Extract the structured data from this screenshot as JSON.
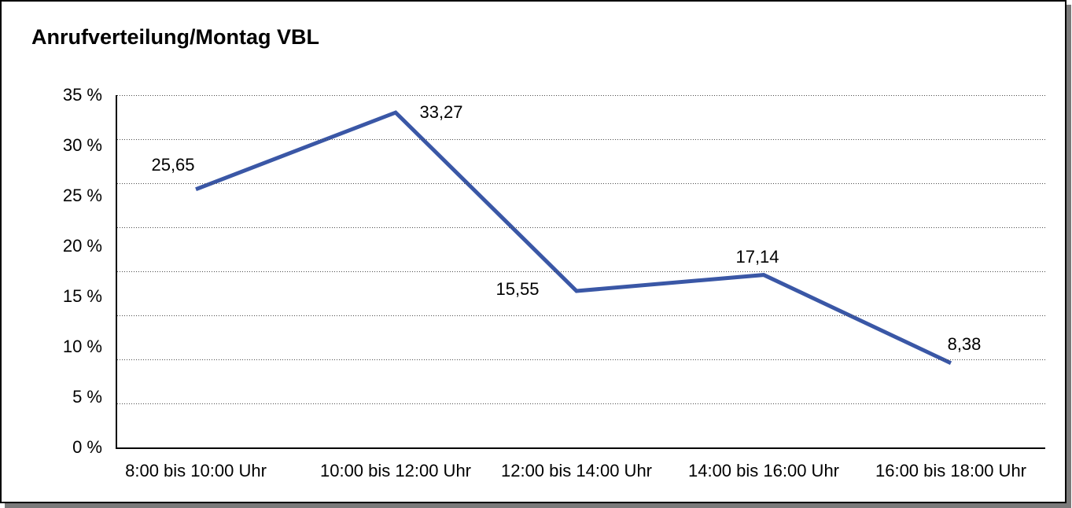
{
  "window": {
    "background": "#ffffff",
    "border_color": "#000000",
    "shadow_color": "#7a7a7a"
  },
  "chart_data": {
    "type": "line",
    "title": "Anrufverteilung/Montag VBL",
    "categories": [
      "8:00 bis 10:00 Uhr",
      "10:00 bis 12:00 Uhr",
      "12:00 bis 14:00 Uhr",
      "14:00 bis 16:00 Uhr",
      "16:00 bis 18:00 Uhr"
    ],
    "values": [
      25.65,
      33.27,
      15.55,
      17.14,
      8.38
    ],
    "value_labels": [
      "25,65",
      "33,27",
      "15,55",
      "17,14",
      "8,38"
    ],
    "xlabel": "",
    "ylabel": "",
    "ylim": [
      0,
      35
    ],
    "y_tick_step": 5,
    "y_tick_labels": [
      "35 %",
      "30 %",
      "25 %",
      "20 %",
      "15 %",
      "10 %",
      "5 %",
      "0 %"
    ],
    "grid": "horizontal-dotted",
    "dotted_gridline_count": 8,
    "legend": "none",
    "line_color": "#3a57a6",
    "line_width": 5,
    "text_color": "#000000"
  }
}
